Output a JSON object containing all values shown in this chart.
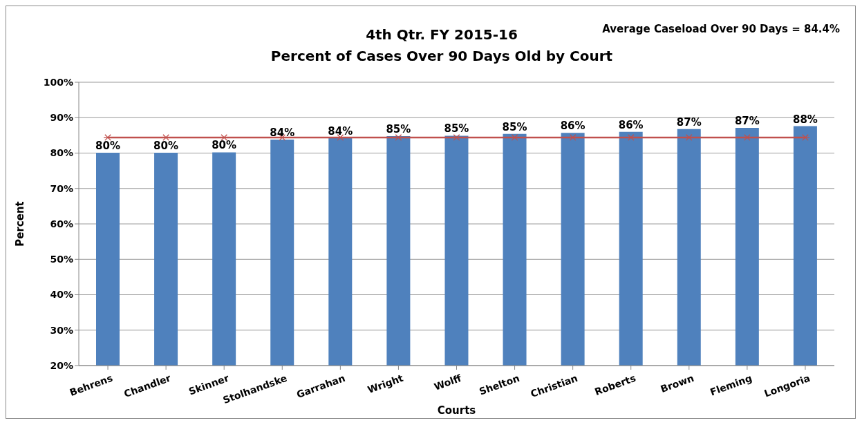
{
  "chart_data": {
    "type": "bar",
    "title": "4th Qtr. FY 2015-16",
    "subtitle": "Percent of Cases Over 90 Days Old by Court",
    "xlabel": "Courts",
    "ylabel": "Percent",
    "annotations": [
      "Average Caseload Over 90 Days = 84.4%"
    ],
    "categories": [
      "Behrens",
      "Chandler",
      "Skinner",
      "Stolhandske",
      "Garrahan",
      "Wright",
      "Wolff",
      "Shelton",
      "Christian",
      "Roberts",
      "Brown",
      "Fleming",
      "Longoria"
    ],
    "series": [
      {
        "color": "#4f81bd",
        "values": [
          80.1,
          80.1,
          80.2,
          83.8,
          84.2,
          84.8,
          84.9,
          85.4,
          85.7,
          86.0,
          86.8,
          87.1,
          87.6
        ],
        "value_labels": [
          "80%",
          "80%",
          "80%",
          "84%",
          "84%",
          "85%",
          "85%",
          "85%",
          "86%",
          "86%",
          "87%",
          "87%",
          "88%"
        ]
      },
      {
        "type": "line",
        "color": "#c0504d",
        "values": [
          84.4,
          84.4,
          84.4,
          84.4,
          84.4,
          84.4,
          84.4,
          84.4,
          84.4,
          84.4,
          84.4,
          84.4,
          84.4
        ]
      }
    ],
    "marker": "cross",
    "ylim": [
      20,
      100
    ],
    "yticks": [
      {
        "value": 20,
        "label": "20%"
      },
      {
        "value": 30,
        "label": "30%"
      },
      {
        "value": 40,
        "label": "40%"
      },
      {
        "value": 50,
        "label": "50%"
      },
      {
        "value": 60,
        "label": "60%"
      },
      {
        "value": 70,
        "label": "70%"
      },
      {
        "value": 80,
        "label": "80%"
      },
      {
        "value": 90,
        "label": "90%"
      },
      {
        "value": 100,
        "label": "100%"
      }
    ],
    "grid": "y",
    "legend": false
  }
}
